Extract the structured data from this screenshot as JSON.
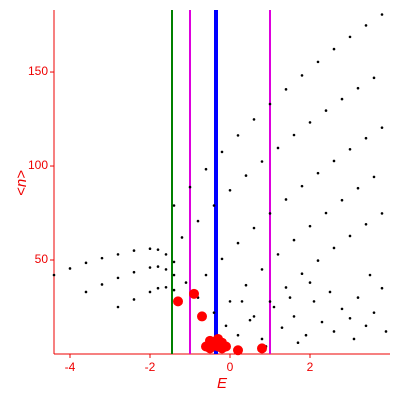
{
  "chart_data": {
    "type": "scatter",
    "xlabel": "E",
    "ylabel": "<n>",
    "xlim": [
      -4.4,
      4.0
    ],
    "ylim": [
      0,
      183
    ],
    "xticks": [
      -4,
      -2,
      0,
      2
    ],
    "yticks": [
      50,
      100,
      150
    ],
    "vlines": [
      {
        "x": -1.45,
        "color": "#008000"
      },
      {
        "x": -1.0,
        "color": "#dd00dd"
      },
      {
        "x": -0.35,
        "color": "#0000ff"
      },
      {
        "x": 1.0,
        "color": "#dd00dd"
      }
    ],
    "series": [
      {
        "color": "#000000",
        "x": [
          -1.4,
          -1.0,
          -0.6,
          -0.2,
          0.2,
          0.6,
          1.0,
          1.4,
          1.8,
          2.2,
          2.6,
          3.0,
          3.4,
          3.8
        ],
        "y": [
          79,
          88.8,
          98.3,
          107.5,
          116.3,
          124.8,
          133,
          140.8,
          148.2,
          155.4,
          162.2,
          168.7,
          174.8,
          180.6
        ]
      },
      {
        "color": "#000000",
        "x": [
          -1.2,
          -0.8,
          -0.4,
          0,
          0.4,
          0.8,
          1.2,
          1.6,
          2.0,
          2.4,
          2.8,
          3.2,
          3.6
        ],
        "y": [
          62,
          70.7,
          79.0,
          87.1,
          94.9,
          102.4,
          109.6,
          116.5,
          123.2,
          129.5,
          135.6,
          141.4,
          146.9
        ]
      },
      {
        "color": "#000000",
        "x": [
          -0.6,
          -0.2,
          0.2,
          0.6,
          1.0,
          1.4,
          1.8,
          2.2,
          2.6,
          3.0,
          3.4,
          3.8
        ],
        "y": [
          42,
          50.6,
          59.0,
          67.0,
          74.8,
          82.2,
          89.3,
          96.2,
          102.7,
          108.9,
          114.8,
          120.4
        ]
      },
      {
        "color": "#000000",
        "x": [
          0,
          0.4,
          0.8,
          1.2,
          1.6,
          2.0,
          2.4,
          2.8,
          3.2,
          3.6
        ],
        "y": [
          28,
          36.6,
          45.0,
          53.0,
          60.6,
          68.0,
          75.0,
          81.8,
          88.2,
          94.2
        ]
      },
      {
        "color": "#000000",
        "x": [
          0.6,
          1.0,
          1.4,
          1.8,
          2.2,
          2.6,
          3.0,
          3.4,
          3.8
        ],
        "y": [
          20,
          27.9,
          35.4,
          42.7,
          49.7,
          56.4,
          62.8,
          69.0,
          74.8
        ]
      },
      {
        "color": "#000000",
        "x": [
          -4.4,
          -4.0,
          -3.6,
          -3.2,
          -2.8,
          -2.4,
          -2.0,
          -1.8,
          -1.6,
          -1.4
        ],
        "y": [
          42,
          45.5,
          48.5,
          51,
          53,
          55,
          56,
          55.5,
          53,
          49
        ]
      },
      {
        "color": "#000000",
        "x": [
          -3.6,
          -3.2,
          -2.8,
          -2.4,
          -2.0,
          -1.8,
          -1.6,
          -1.4
        ],
        "y": [
          33,
          37,
          40.5,
          43.5,
          46,
          46.5,
          45,
          42
        ]
      },
      {
        "color": "#000000",
        "x": [
          -2.8,
          -2.4,
          -2.0,
          -1.8,
          -1.6,
          -1.4
        ],
        "y": [
          25,
          29,
          33,
          35,
          35.5,
          34
        ]
      },
      {
        "color": "#000000",
        "x": [
          -0.4,
          -0.1,
          0.2,
          0.5,
          0.8,
          1.1,
          1.3,
          1.6,
          1.9,
          2.1,
          2.3,
          2.6,
          2.8,
          3.0,
          3.2,
          3.4,
          3.6,
          3.8,
          3.9,
          2.5,
          1.5,
          0.3,
          -0.8,
          -1.1,
          -0.2,
          0.9,
          1.7,
          3.1,
          2.0,
          3.5
        ],
        "y": [
          22,
          15,
          10,
          18,
          8,
          25,
          14,
          20,
          10,
          28,
          17,
          12,
          24,
          19,
          30,
          15,
          22,
          35,
          12,
          33,
          30,
          28,
          30,
          38,
          6,
          4,
          6,
          8,
          38,
          42
        ]
      },
      {
        "color": "#ff0000",
        "x": [
          -0.6,
          -0.5,
          -0.4,
          -0.3,
          -0.2,
          -0.1,
          -0.5,
          -0.3,
          -0.2,
          0.2,
          -1.3,
          -0.9,
          -0.7,
          0.8
        ],
        "y": [
          4,
          3,
          5,
          4,
          3,
          4,
          7,
          8,
          6,
          2,
          28,
          32,
          20,
          3
        ]
      }
    ]
  }
}
